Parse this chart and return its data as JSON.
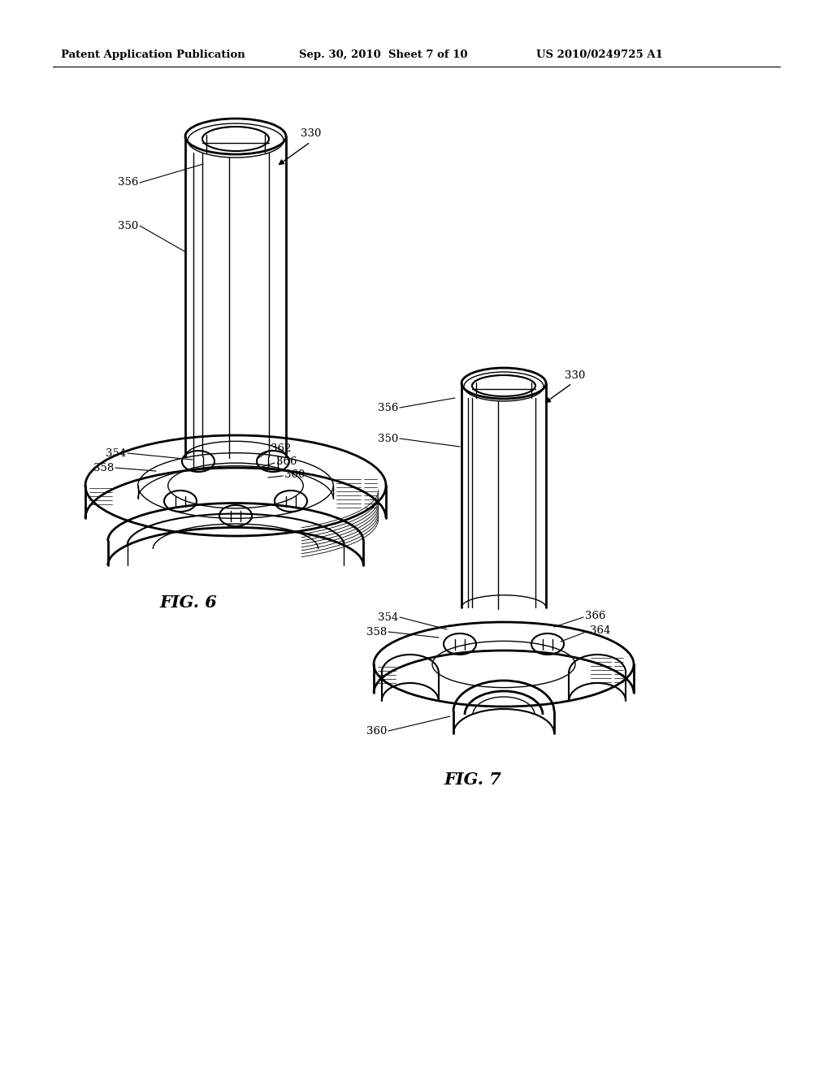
{
  "bg_color": "#ffffff",
  "page_width": 10.24,
  "page_height": 13.2,
  "header_text": "Patent Application Publication",
  "header_date": "Sep. 30, 2010  Sheet 7 of 10",
  "header_patent": "US 2010/0249725 A1",
  "fig6_label": "FIG. 6",
  "fig7_label": "FIG. 7",
  "line_color": "#000000",
  "label_fontsize": 9.5,
  "fig_label_fontsize": 15,
  "header_fontsize": 9.5
}
